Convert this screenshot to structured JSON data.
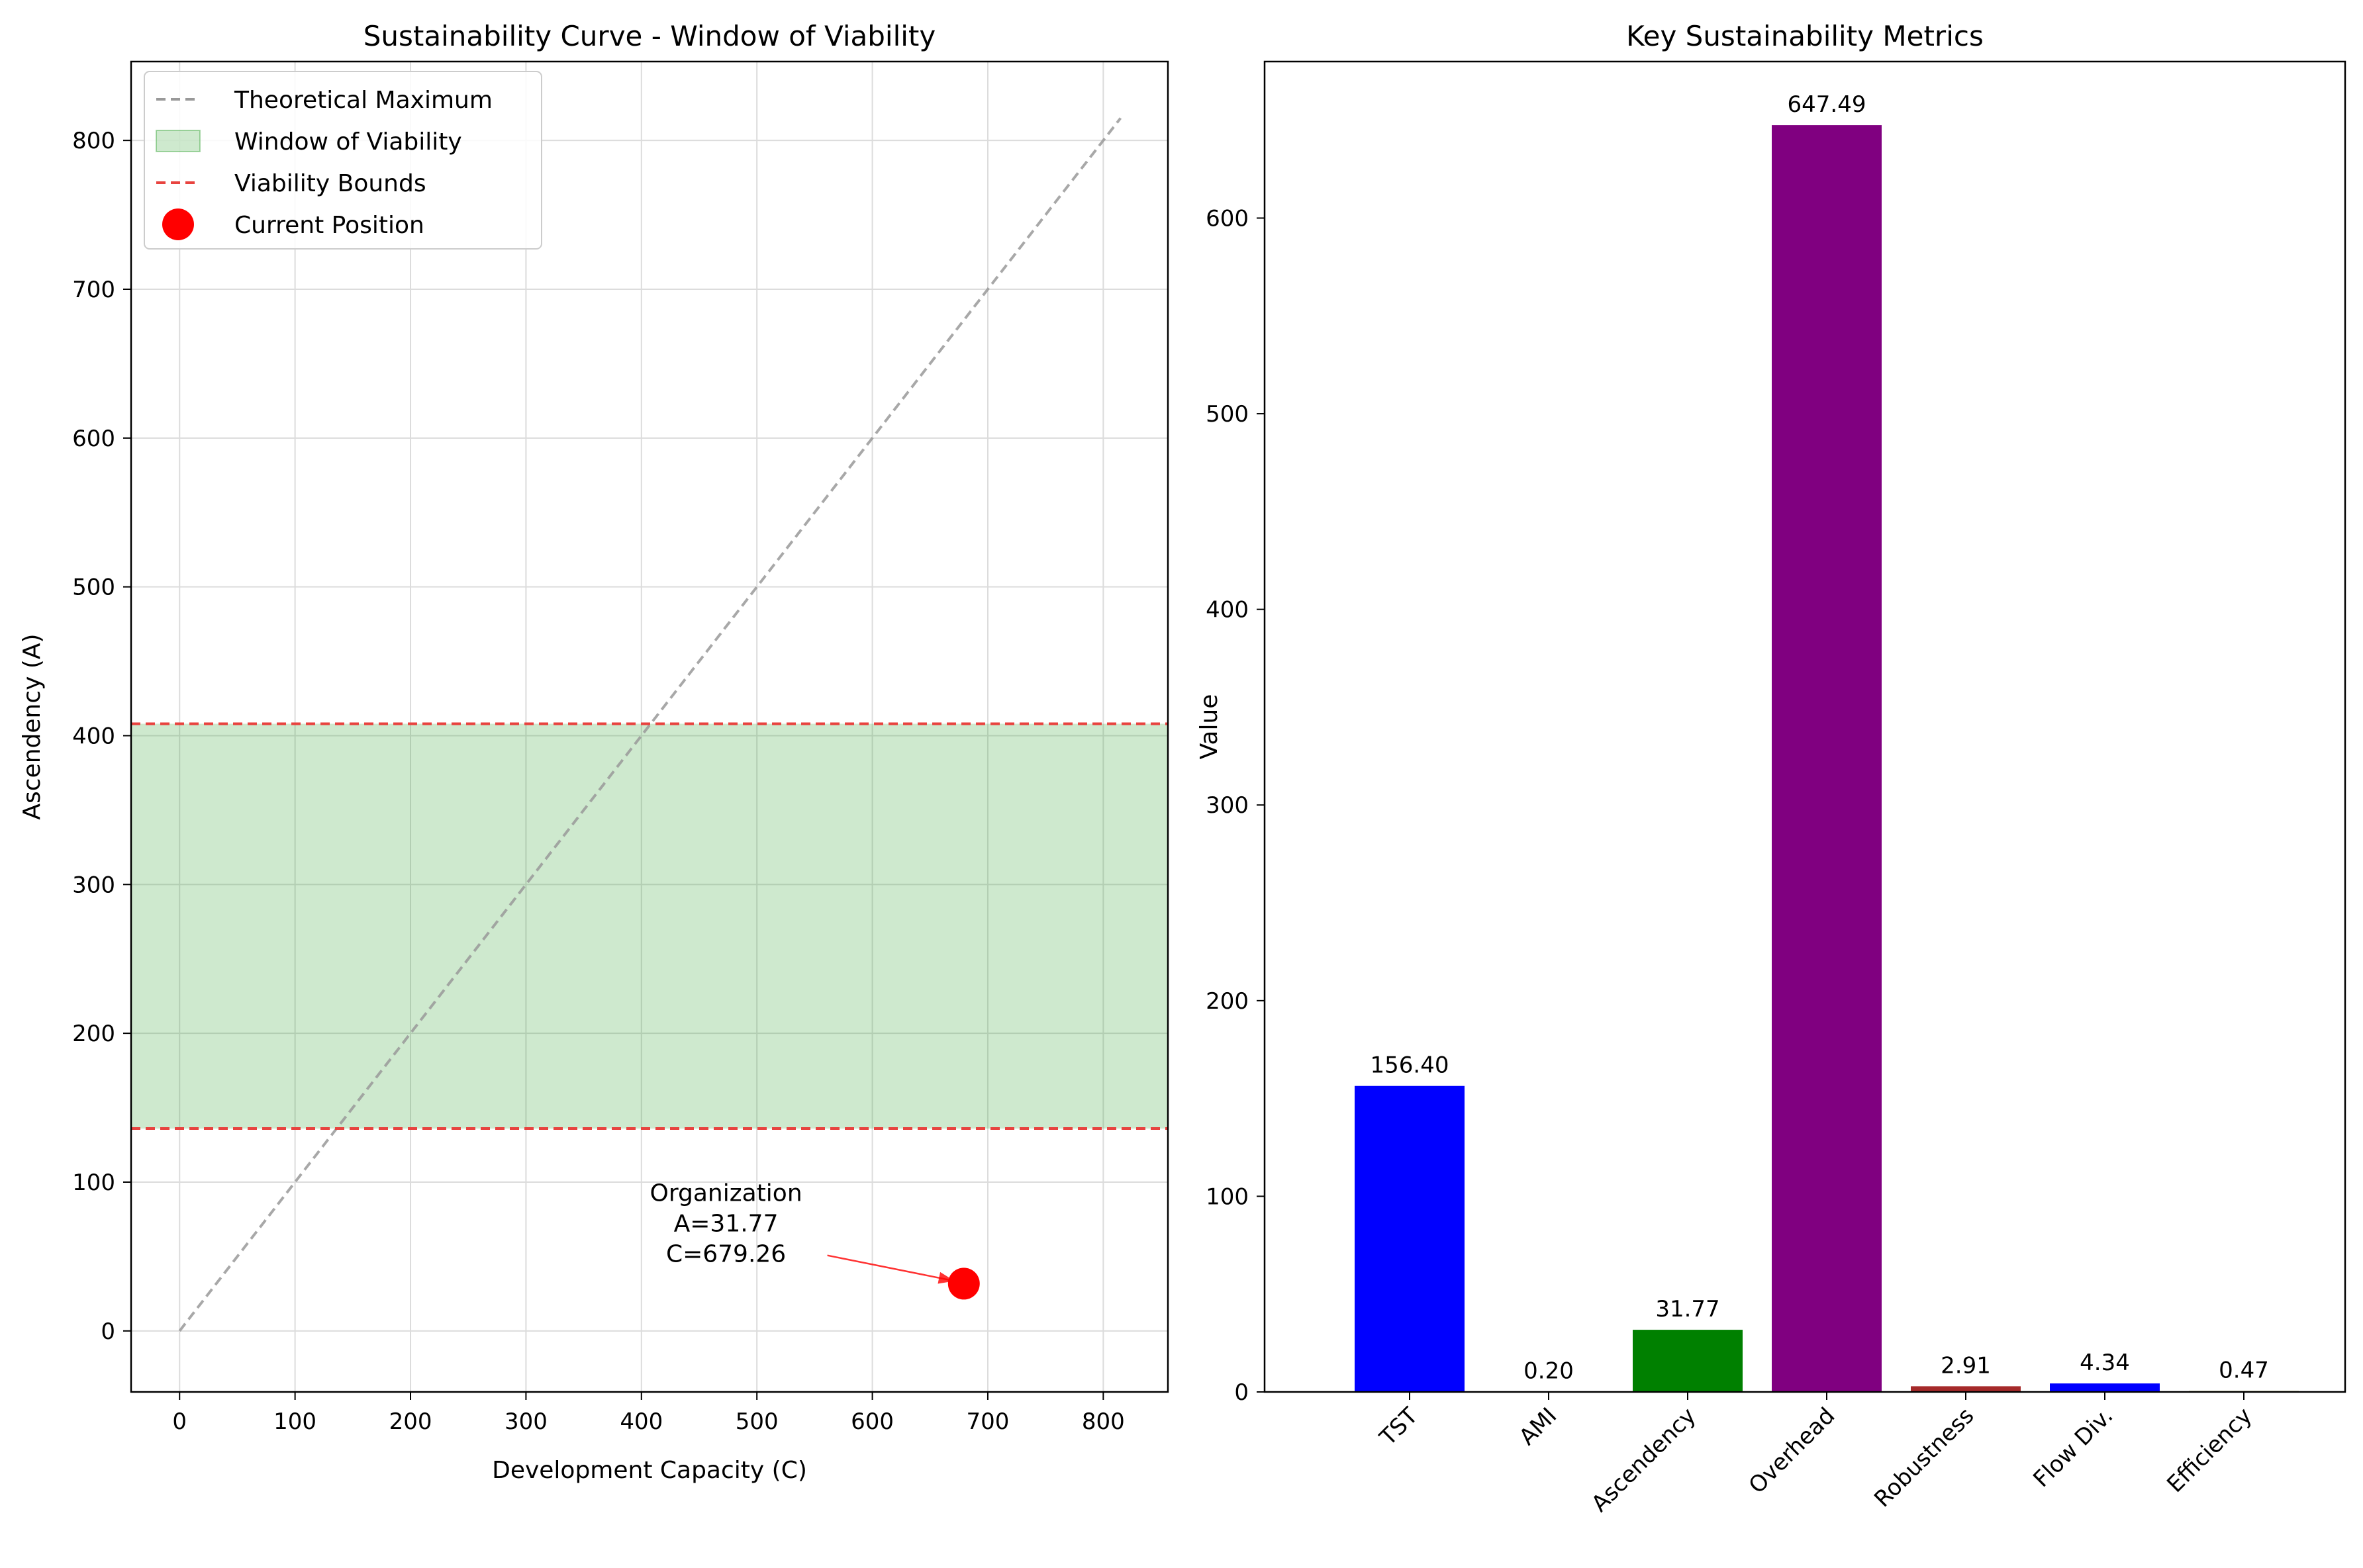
{
  "chart_data": [
    {
      "type": "line",
      "title": "Sustainability Curve - Window of Viability",
      "xlabel": "Development Capacity (C)",
      "ylabel": "Ascendency (A)",
      "xlim": [
        -42,
        856
      ],
      "ylim": [
        -41,
        853
      ],
      "xticks": [
        0,
        100,
        200,
        300,
        400,
        500,
        600,
        700,
        800
      ],
      "yticks": [
        0,
        100,
        200,
        300,
        400,
        500,
        600,
        700,
        800
      ],
      "grid": true,
      "legend_position": "upper-left",
      "series": [
        {
          "name": "Theoretical Maximum",
          "kind": "line",
          "style": "dashed",
          "color": "#999999",
          "x": [
            0,
            815
          ],
          "y": [
            0,
            815
          ]
        },
        {
          "name": "Window of Viability",
          "kind": "band",
          "color": "#2ca02c",
          "y_low": 136,
          "y_high": 408
        },
        {
          "name": "Viability Bounds",
          "kind": "hlines",
          "style": "dashed",
          "color": "#e8433f",
          "y": [
            136,
            408
          ]
        },
        {
          "name": "Current Position",
          "kind": "scatter",
          "color": "#ff0000",
          "x": [
            679.26
          ],
          "y": [
            31.77
          ]
        }
      ],
      "annotation": {
        "lines": [
          "Organization",
          "A=31.77",
          "C=679.26"
        ],
        "text_x": 475,
        "text_y": 65,
        "target_x": 679.26,
        "target_y": 31.77,
        "arrow_color": "#ff0000"
      }
    },
    {
      "type": "bar",
      "title": "Key Sustainability Metrics",
      "xlabel": "",
      "ylabel": "Value",
      "ylim": [
        0,
        680
      ],
      "yticks": [
        0,
        100,
        200,
        300,
        400,
        500,
        600
      ],
      "grid": false,
      "categories": [
        "TST",
        "AMI",
        "Ascendency",
        "Overhead",
        "Robustness",
        "Flow Div.",
        "Efficiency"
      ],
      "values": [
        156.4,
        0.2,
        31.77,
        647.49,
        2.91,
        4.34,
        0.47
      ],
      "value_labels": [
        "156.40",
        "0.20",
        "31.77",
        "647.49",
        "2.91",
        "4.34",
        "0.47"
      ],
      "colors": [
        "#0000ff",
        "#ff7f0e",
        "#008000",
        "#800080",
        "#a52a2a",
        "#0000ff",
        "#808000"
      ]
    }
  ]
}
